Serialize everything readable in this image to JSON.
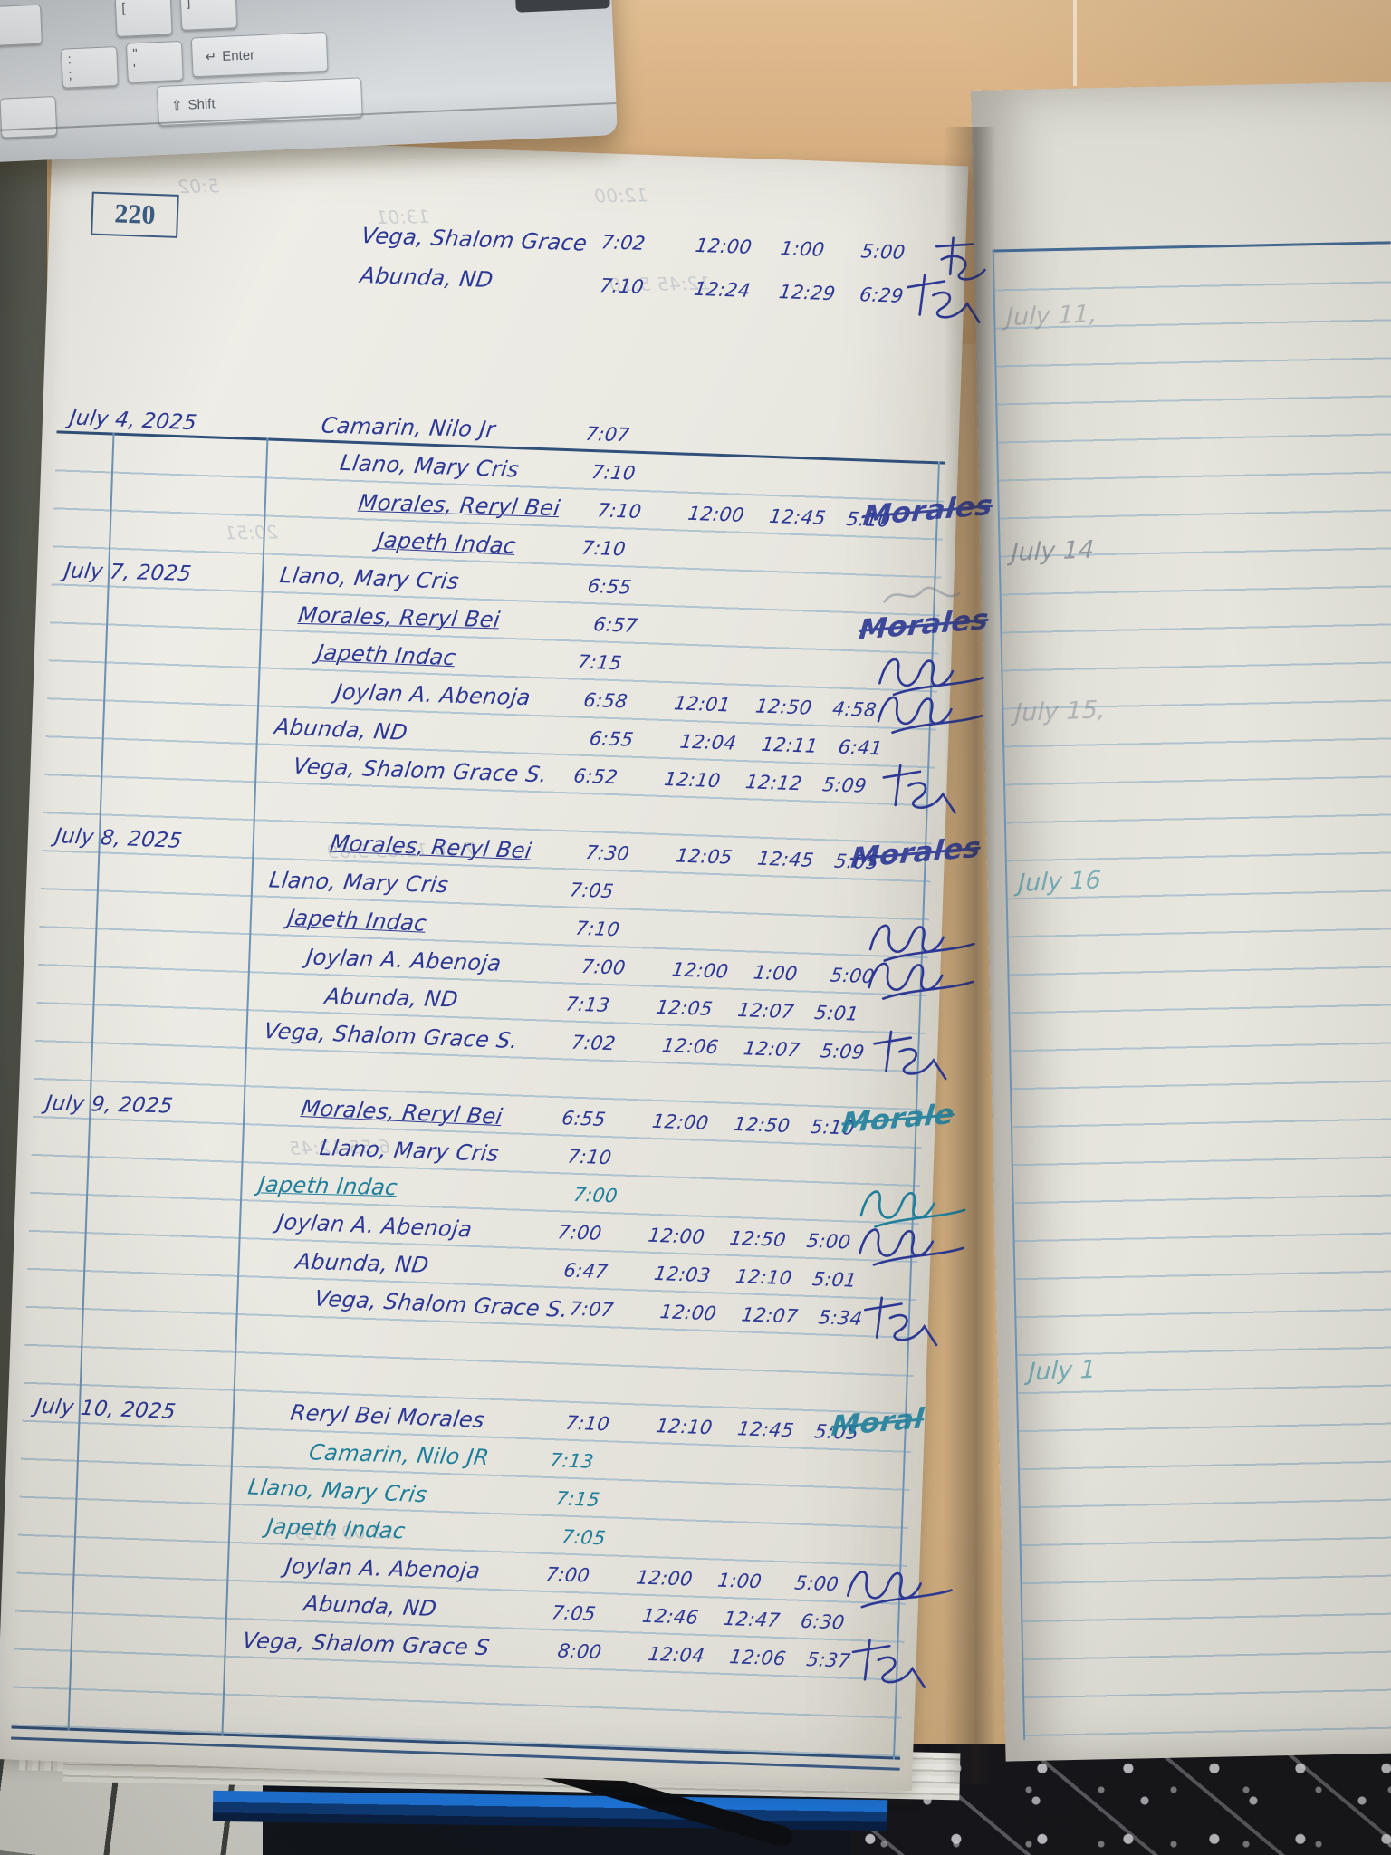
{
  "page_number": "220",
  "header_entries": [
    {
      "name": "Vega, Shalom Grace",
      "times": [
        "7:02",
        "12:00",
        "1:00",
        "5:00"
      ],
      "sig_mark": "cross"
    },
    {
      "name": "Abunda, ND",
      "times": [
        "7:10",
        "12:24",
        "12:29",
        "6:29"
      ],
      "sig_mark": "fs"
    }
  ],
  "log_blocks": [
    {
      "date": "July 4, 2025",
      "gap_after": 0,
      "rows": [
        {
          "name": "Camarin, Nilo Jr",
          "times": [
            "7:07"
          ]
        },
        {
          "name": "Llano, Mary Cris",
          "times": [
            "7:10"
          ]
        },
        {
          "name": "Morales, Reryl Bei",
          "u": true,
          "times": [
            "7:10",
            "12:00",
            "12:45",
            "5:10"
          ],
          "sig_text": "Morales"
        },
        {
          "name": "Japeth Indac",
          "u": true,
          "times": [
            "7:10"
          ]
        }
      ]
    },
    {
      "date": "July 7, 2025",
      "gap_after": 1,
      "rows": [
        {
          "name": "Llano, Mary Cris",
          "times": [
            "6:55"
          ],
          "sig_mark": "faint"
        },
        {
          "name": "Morales, Reryl Bei",
          "u": true,
          "times": [
            "6:57"
          ],
          "sig_text": "Morales"
        },
        {
          "name": "Japeth Indac",
          "u": true,
          "times": [
            "7:15"
          ],
          "sig_mark": "loop"
        },
        {
          "name": "Joylan A. Abenoja",
          "times": [
            "6:58",
            "12:01",
            "12:50",
            "4:58"
          ],
          "sig_mark": "loop"
        },
        {
          "name": "Abunda, ND",
          "times": [
            "6:55",
            "12:04",
            "12:11",
            "6:41"
          ]
        },
        {
          "name": "Vega, Shalom Grace S.",
          "times": [
            "6:52",
            "12:10",
            "12:12",
            "5:09"
          ],
          "sig_mark": "fs"
        }
      ]
    },
    {
      "date": "July 8, 2025",
      "gap_after": 1,
      "rows": [
        {
          "name": "Morales, Reryl Bei",
          "u": true,
          "times": [
            "7:30",
            "12:05",
            "12:45",
            "5:05"
          ],
          "sig_text": "Morales"
        },
        {
          "name": "Llano, Mary Cris",
          "times": [
            "7:05"
          ]
        },
        {
          "name": "Japeth Indac",
          "u": true,
          "times": [
            "7:10"
          ],
          "sig_mark": "loop"
        },
        {
          "name": "Joylan A. Abenoja",
          "times": [
            "7:00",
            "12:00",
            "1:00",
            "5:00"
          ],
          "sig_mark": "loop"
        },
        {
          "name": "Abunda, ND",
          "times": [
            "7:13",
            "12:05",
            "12:07",
            "5:01"
          ]
        },
        {
          "name": "Vega, Shalom Grace S.",
          "times": [
            "7:02",
            "12:06",
            "12:07",
            "5:09"
          ],
          "sig_mark": "fs"
        }
      ]
    },
    {
      "date": "July 9, 2025",
      "gap_after": 2,
      "rows": [
        {
          "name": "Morales, Reryl Bei",
          "u": true,
          "times": [
            "6:55",
            "12:00",
            "12:50",
            "5:10"
          ],
          "sig_text": "Morale",
          "sig_ink": "teal"
        },
        {
          "name": "Llano, Mary Cris",
          "times": [
            "7:10"
          ]
        },
        {
          "name": "Japeth Indac",
          "u": true,
          "ink": "teal",
          "times": [
            "7:00"
          ],
          "sig_mark": "loop",
          "sig_ink": "teal"
        },
        {
          "name": "Joylan A. Abenoja",
          "times": [
            "7:00",
            "12:00",
            "12:50",
            "5:00"
          ],
          "sig_mark": "loop"
        },
        {
          "name": "Abunda, ND",
          "times": [
            "6:47",
            "12:03",
            "12:10",
            "5:01"
          ]
        },
        {
          "name": "Vega, Shalom Grace S.",
          "times": [
            "7:07",
            "12:00",
            "12:07",
            "5:34"
          ],
          "sig_mark": "fs"
        }
      ]
    },
    {
      "date": "July 10, 2025",
      "gap_after": 0,
      "rows": [
        {
          "name": "Reryl Bei Morales",
          "times": [
            "7:10",
            "12:10",
            "12:45",
            "5:05"
          ],
          "sig_text": "Moral",
          "sig_ink": "teal"
        },
        {
          "name": "Camarin, Nilo JR",
          "ink": "teal",
          "times": [
            "7:13"
          ]
        },
        {
          "name": "Llano, Mary Cris",
          "ink": "teal",
          "times": [
            "7:15"
          ]
        },
        {
          "name": "Japeth Indac",
          "ink": "teal",
          "times": [
            "7:05"
          ]
        },
        {
          "name": "Joylan A. Abenoja",
          "times": [
            "7:00",
            "12:00",
            "1:00",
            "5:00"
          ],
          "sig_mark": "loop"
        },
        {
          "name": "Abunda, ND",
          "times": [
            "7:05",
            "12:46",
            "12:47",
            "6:30"
          ]
        },
        {
          "name": "Vega, Shalom Grace S",
          "times": [
            "8:00",
            "12:04",
            "12:06",
            "5:37"
          ],
          "sig_mark": "fs"
        }
      ]
    }
  ],
  "next_page": {
    "dates": [
      {
        "label": "July 11,",
        "ink": "pencil-light"
      },
      {
        "label": "July 14",
        "ink": "pencil"
      },
      {
        "label": "July 15,",
        "ink": "pencil-light"
      },
      {
        "label": "July 16",
        "ink": "teal-light"
      },
      {
        "label": "July 1",
        "ink": "teal-light"
      }
    ]
  },
  "ghost_marks": [
    "5:02",
    "13:01",
    "12:00",
    "12:45  5:10",
    "20:51",
    "7:10  12:03  5:09",
    "6:55  12:45",
    "12:00  5:09"
  ],
  "keyboard": {
    "keys": {
      "star": "*",
      "lbracket": "[",
      "rbracket": "]",
      "colon_top": ":",
      "colon_bottom": ";",
      "quote_top": "\"",
      "quote_bottom": "'",
      "enter": "Enter",
      "shift": "Shift"
    },
    "icons": {
      "enter_arrow": "↵",
      "shift_arrow": "⇧"
    }
  },
  "colors": {
    "ink_blue": "#2c3894",
    "ink_teal": "#1f7f9b",
    "table_border": "#30507a",
    "rule_line": "#7aa0c0"
  }
}
